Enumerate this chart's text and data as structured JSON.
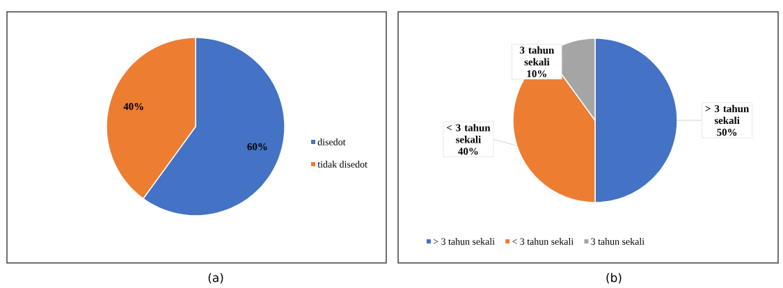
{
  "chart_data": [
    {
      "type": "pie",
      "categories": [
        "disedot",
        "tidak disedot"
      ],
      "values": [
        60,
        40
      ],
      "colors": [
        "#4472c4",
        "#ed7d31"
      ],
      "value_labels": [
        "60%",
        "40%"
      ],
      "legend": "right",
      "annotations": [
        "(a)"
      ]
    },
    {
      "type": "pie",
      "categories": [
        "> 3 tahun sekali",
        "< 3 tahun sekali",
        "3 tahun sekali"
      ],
      "values": [
        50,
        40,
        10
      ],
      "colors": [
        "#4472c4",
        "#ed7d31",
        "#a5a5a5"
      ],
      "value_labels": [
        "> 3 tahun sekali 50%",
        "< 3 tahun sekali 40%",
        "3 tahun sekali 10%"
      ],
      "legend": "bottom",
      "annotations": [
        "(b)"
      ]
    }
  ]
}
